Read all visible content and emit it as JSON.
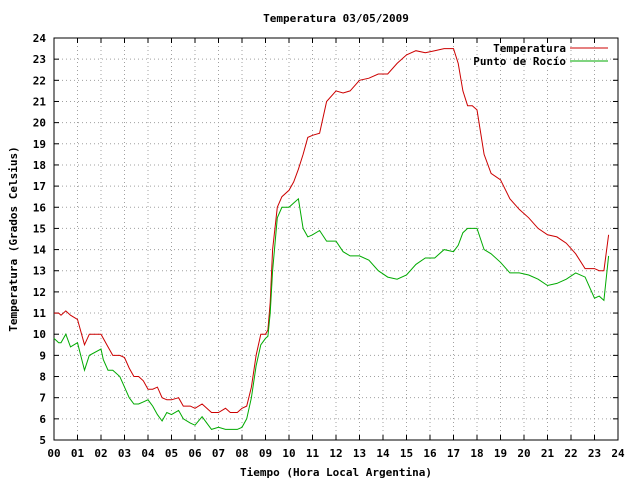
{
  "chart_data": {
    "type": "line",
    "title": "Temperatura 03/05/2009",
    "xlabel": "Tiempo (Hora Local Argentina)",
    "ylabel": "Temperatura (Grados Celsius)",
    "xlim": [
      0,
      24
    ],
    "ylim": [
      5,
      24
    ],
    "x_tick_labels": [
      "00",
      "01",
      "02",
      "03",
      "04",
      "05",
      "06",
      "07",
      "08",
      "09",
      "10",
      "11",
      "12",
      "13",
      "14",
      "15",
      "16",
      "17",
      "18",
      "19",
      "20",
      "21",
      "22",
      "23",
      "24"
    ],
    "y_tick_labels": [
      "5",
      "6",
      "7",
      "8",
      "9",
      "10",
      "11",
      "12",
      "13",
      "14",
      "15",
      "16",
      "17",
      "18",
      "19",
      "20",
      "21",
      "22",
      "23",
      "24"
    ],
    "grid": true,
    "legend_position": "top-right",
    "series": [
      {
        "name": "Temperatura",
        "color": "#cc0000",
        "x": [
          0,
          0.2,
          0.3,
          0.5,
          0.7,
          1.0,
          1.3,
          1.5,
          2.0,
          2.1,
          2.3,
          2.5,
          2.8,
          3.0,
          3.2,
          3.4,
          3.6,
          3.8,
          4.0,
          4.2,
          4.4,
          4.6,
          4.8,
          5.0,
          5.3,
          5.5,
          5.8,
          6.0,
          6.3,
          6.5,
          6.7,
          7.0,
          7.3,
          7.5,
          7.8,
          8.0,
          8.2,
          8.4,
          8.6,
          8.8,
          9.0,
          9.1,
          9.2,
          9.3,
          9.5,
          9.7,
          10.0,
          10.2,
          10.4,
          10.6,
          10.8,
          11.0,
          11.3,
          11.6,
          12.0,
          12.3,
          12.6,
          13.0,
          13.4,
          13.8,
          14.2,
          14.6,
          15.0,
          15.4,
          15.8,
          16.2,
          16.6,
          17.0,
          17.2,
          17.4,
          17.6,
          17.8,
          18.0,
          18.3,
          18.6,
          19.0,
          19.4,
          19.8,
          20.2,
          20.6,
          21.0,
          21.4,
          21.8,
          22.2,
          22.6,
          23.0,
          23.2,
          23.4,
          23.6
        ],
        "y": [
          11.0,
          11.0,
          10.9,
          11.1,
          10.9,
          10.7,
          9.5,
          10.0,
          10.0,
          9.8,
          9.4,
          9.0,
          9.0,
          8.9,
          8.4,
          8.0,
          8.0,
          7.8,
          7.4,
          7.4,
          7.5,
          7.0,
          6.9,
          6.9,
          7.0,
          6.6,
          6.6,
          6.5,
          6.7,
          6.5,
          6.3,
          6.3,
          6.5,
          6.3,
          6.3,
          6.5,
          6.6,
          7.5,
          9.0,
          10.0,
          10.0,
          10.2,
          11.5,
          14.0,
          16.0,
          16.5,
          16.8,
          17.2,
          17.8,
          18.5,
          19.3,
          19.4,
          19.5,
          21.0,
          21.5,
          21.4,
          21.5,
          22.0,
          22.1,
          22.3,
          22.3,
          22.8,
          23.2,
          23.4,
          23.3,
          23.4,
          23.5,
          23.5,
          22.8,
          21.5,
          20.8,
          20.8,
          20.6,
          18.5,
          17.6,
          17.3,
          16.4,
          15.9,
          15.5,
          15.0,
          14.7,
          14.6,
          14.3,
          13.8,
          13.1,
          13.1,
          13.0,
          13.0,
          14.7
        ]
      },
      {
        "name": "Punto de Rocío",
        "color": "#00aa00",
        "x": [
          0,
          0.2,
          0.3,
          0.5,
          0.7,
          1.0,
          1.3,
          1.5,
          2.0,
          2.1,
          2.3,
          2.5,
          2.8,
          3.0,
          3.2,
          3.4,
          3.6,
          3.8,
          4.0,
          4.2,
          4.4,
          4.6,
          4.8,
          5.0,
          5.3,
          5.5,
          5.8,
          6.0,
          6.3,
          6.5,
          6.7,
          7.0,
          7.3,
          7.5,
          7.8,
          8.0,
          8.2,
          8.4,
          8.6,
          8.8,
          9.0,
          9.1,
          9.2,
          9.3,
          9.5,
          9.7,
          10.0,
          10.2,
          10.4,
          10.6,
          10.8,
          11.0,
          11.3,
          11.6,
          12.0,
          12.3,
          12.6,
          13.0,
          13.4,
          13.8,
          14.2,
          14.6,
          15.0,
          15.4,
          15.8,
          16.2,
          16.6,
          17.0,
          17.2,
          17.4,
          17.6,
          17.8,
          18.0,
          18.3,
          18.6,
          19.0,
          19.4,
          19.8,
          20.2,
          20.6,
          21.0,
          21.4,
          21.8,
          22.2,
          22.6,
          23.0,
          23.2,
          23.4,
          23.6
        ],
        "y": [
          9.8,
          9.6,
          9.6,
          10.0,
          9.4,
          9.6,
          8.3,
          9.0,
          9.3,
          8.8,
          8.3,
          8.3,
          8.0,
          7.5,
          7.0,
          6.7,
          6.7,
          6.8,
          6.9,
          6.6,
          6.2,
          5.9,
          6.3,
          6.2,
          6.4,
          6.0,
          5.8,
          5.7,
          6.1,
          5.8,
          5.5,
          5.6,
          5.5,
          5.5,
          5.5,
          5.6,
          6.0,
          7.0,
          8.5,
          9.5,
          9.8,
          9.9,
          11.0,
          13.0,
          15.5,
          16.0,
          16.0,
          16.2,
          16.4,
          15.0,
          14.6,
          14.7,
          14.9,
          14.4,
          14.4,
          13.9,
          13.7,
          13.7,
          13.5,
          13.0,
          12.7,
          12.6,
          12.8,
          13.3,
          13.6,
          13.6,
          14.0,
          13.9,
          14.2,
          14.8,
          15.0,
          15.0,
          15.0,
          14.0,
          13.8,
          13.4,
          12.9,
          12.9,
          12.8,
          12.6,
          12.3,
          12.4,
          12.6,
          12.9,
          12.7,
          11.7,
          11.8,
          11.6,
          13.7
        ]
      }
    ]
  }
}
